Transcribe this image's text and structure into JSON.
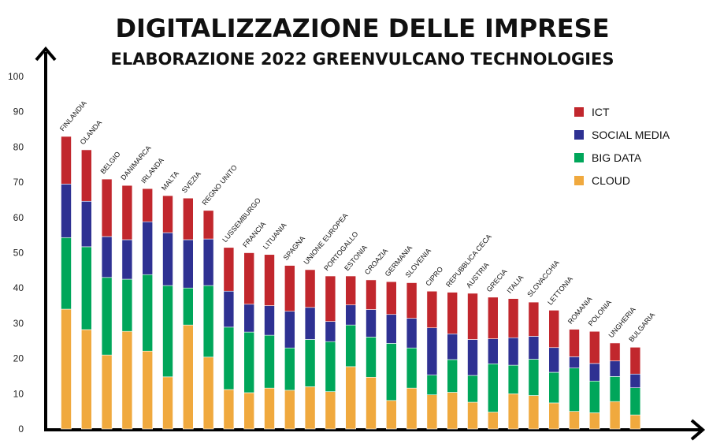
{
  "chart_data": {
    "type": "bar",
    "stacked": true,
    "title": "DIGITALIZZAZIONE DELLE IMPRESE",
    "subtitle": "ELABORAZIONE 2022 GREENVULCANO TECHNOLOGIES",
    "xlabel": "",
    "ylabel": "",
    "ylim": [
      0,
      100
    ],
    "yticks": [
      0,
      10,
      20,
      30,
      40,
      50,
      60,
      70,
      80,
      90,
      100
    ],
    "grid": false,
    "legend_position": "top-right",
    "categories": [
      "FINLANDIA",
      "OLANDA",
      "BELGIO",
      "DANIMARCA",
      "IRLANDA",
      "MALTA",
      "SVEZIA",
      "REGNO UNITO",
      "LUSSEMBURGO",
      "FRANCIA",
      "LITUANIA",
      "SPAGNA",
      "UNIONE EUROPEA",
      "PORTOGALLO",
      "ESTONIA",
      "CROAZIA",
      "GERMANIA",
      "SLOVENIA",
      "CIPRO",
      "REPUBBLICA CECA",
      "AUSTRIA",
      "GRECIA",
      "ITALIA",
      "SLOVACCHIA",
      "LETTONIA",
      "ROMANIA",
      "POLONIA",
      "UNGHERIA",
      "BULGARIA"
    ],
    "series": [
      {
        "name": "CLOUD",
        "color": "#f0a93e",
        "values": [
          34,
          28.2,
          21,
          27.7,
          22.1,
          14.8,
          29.5,
          20.4,
          11.2,
          10.3,
          11.6,
          11,
          12,
          10.6,
          17.7,
          14.7,
          8.1,
          11.6,
          9.7,
          10.4,
          7.6,
          4.8,
          10,
          9.5,
          7.4,
          5,
          4.6,
          7.8,
          4
        ]
      },
      {
        "name": "BIG DATA",
        "color": "#00a65a",
        "values": [
          20.3,
          23.5,
          22,
          14.8,
          21.7,
          25.9,
          10.5,
          20.3,
          17.7,
          17.2,
          15,
          12,
          13.4,
          14.2,
          11.8,
          11.4,
          16.2,
          11.4,
          5.6,
          9.3,
          7.6,
          13.7,
          8.1,
          10.3,
          8.7,
          12.3,
          9,
          7.1,
          7.7
        ]
      },
      {
        "name": "SOCIAL MEDIA",
        "color": "#2e3192",
        "values": [
          15.2,
          12.9,
          11.6,
          11.2,
          15,
          15,
          13.7,
          13.2,
          10.2,
          7.9,
          8.4,
          10.4,
          9.1,
          5.7,
          5.7,
          7.8,
          8.2,
          8.4,
          13.4,
          7.3,
          10.2,
          7.1,
          7.8,
          6.5,
          7,
          3.2,
          5,
          4.4,
          3.9
        ]
      },
      {
        "name": "ICT",
        "color": "#c1272d",
        "values": [
          13.5,
          14.6,
          16.3,
          15.4,
          9.4,
          10.5,
          11.8,
          8.1,
          12.4,
          14.6,
          14.5,
          13,
          10.7,
          12.9,
          8.2,
          8.4,
          9.3,
          10.1,
          10.4,
          11.8,
          13.1,
          11.8,
          11.1,
          9.7,
          10.6,
          7.8,
          9.1,
          5.1,
          7.6
        ]
      }
    ],
    "legend_order": [
      "ICT",
      "SOCIAL MEDIA",
      "BIG DATA",
      "CLOUD"
    ]
  }
}
